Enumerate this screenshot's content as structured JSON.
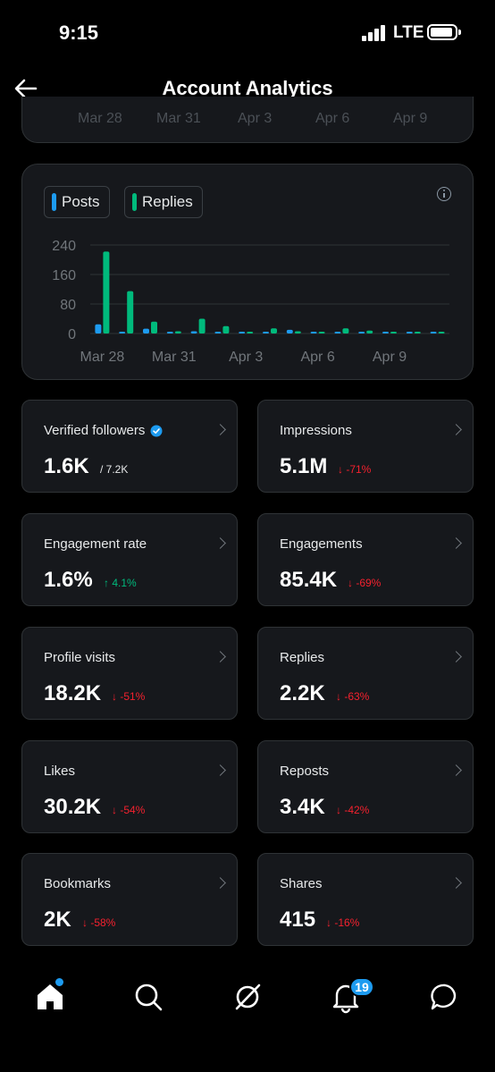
{
  "status_bar": {
    "time": "9:15",
    "network": "LTE"
  },
  "header": {
    "title": "Account Analytics"
  },
  "prev_chart_ticks": [
    "Mar 28",
    "Mar 31",
    "Apr 3",
    "Apr 6",
    "Apr 9"
  ],
  "legend": {
    "posts_label": "Posts",
    "replies_label": "Replies"
  },
  "colors": {
    "posts": "#1d9bf0",
    "replies": "#00ba7c",
    "down": "#f4212e",
    "up": "#00ba7c",
    "accent": "#1d9bf0"
  },
  "chart_data": {
    "type": "bar",
    "categories": [
      "Mar 28",
      "Mar 29",
      "Mar 30",
      "Mar 31",
      "Apr 1",
      "Apr 2",
      "Apr 3",
      "Apr 4",
      "Apr 5",
      "Apr 6",
      "Apr 7",
      "Apr 8",
      "Apr 9",
      "Apr 10",
      "Apr 11"
    ],
    "x_tick_labels": [
      "Mar 28",
      "Mar 31",
      "Apr 3",
      "Apr 6",
      "Apr 9"
    ],
    "y_tick_labels": [
      "240",
      "160",
      "80",
      "0"
    ],
    "ylim": [
      0,
      240
    ],
    "series": [
      {
        "name": "Posts",
        "values": [
          25,
          5,
          13,
          3,
          6,
          4,
          1,
          3,
          10,
          4,
          5,
          4,
          2,
          1,
          1
        ]
      },
      {
        "name": "Replies",
        "values": [
          222,
          115,
          32,
          6,
          40,
          20,
          2,
          14,
          6,
          5,
          14,
          8,
          1,
          2,
          4
        ]
      }
    ],
    "grid": true,
    "legend_position": "top-left"
  },
  "metrics": [
    {
      "label": "Verified followers",
      "value": "1.6K",
      "sub": "/ 7.2K",
      "trend": "neutral",
      "verified": true
    },
    {
      "label": "Impressions",
      "value": "5.1M",
      "sub": "↓ -71%",
      "trend": "down"
    },
    {
      "label": "Engagement rate",
      "value": "1.6%",
      "sub": "↑ 4.1%",
      "trend": "up"
    },
    {
      "label": "Engagements",
      "value": "85.4K",
      "sub": "↓ -69%",
      "trend": "down"
    },
    {
      "label": "Profile visits",
      "value": "18.2K",
      "sub": "↓ -51%",
      "trend": "down"
    },
    {
      "label": "Replies",
      "value": "2.2K",
      "sub": "↓ -63%",
      "trend": "down"
    },
    {
      "label": "Likes",
      "value": "30.2K",
      "sub": "↓ -54%",
      "trend": "down"
    },
    {
      "label": "Reposts",
      "value": "3.4K",
      "sub": "↓ -42%",
      "trend": "down"
    },
    {
      "label": "Bookmarks",
      "value": "2K",
      "sub": "↓ -58%",
      "trend": "down"
    },
    {
      "label": "Shares",
      "value": "415",
      "sub": "↓ -16%",
      "trend": "down"
    }
  ],
  "nav": {
    "items": [
      "home-icon",
      "search-icon",
      "grok-icon",
      "bell-icon",
      "messages-icon"
    ],
    "notification_count": "19"
  }
}
